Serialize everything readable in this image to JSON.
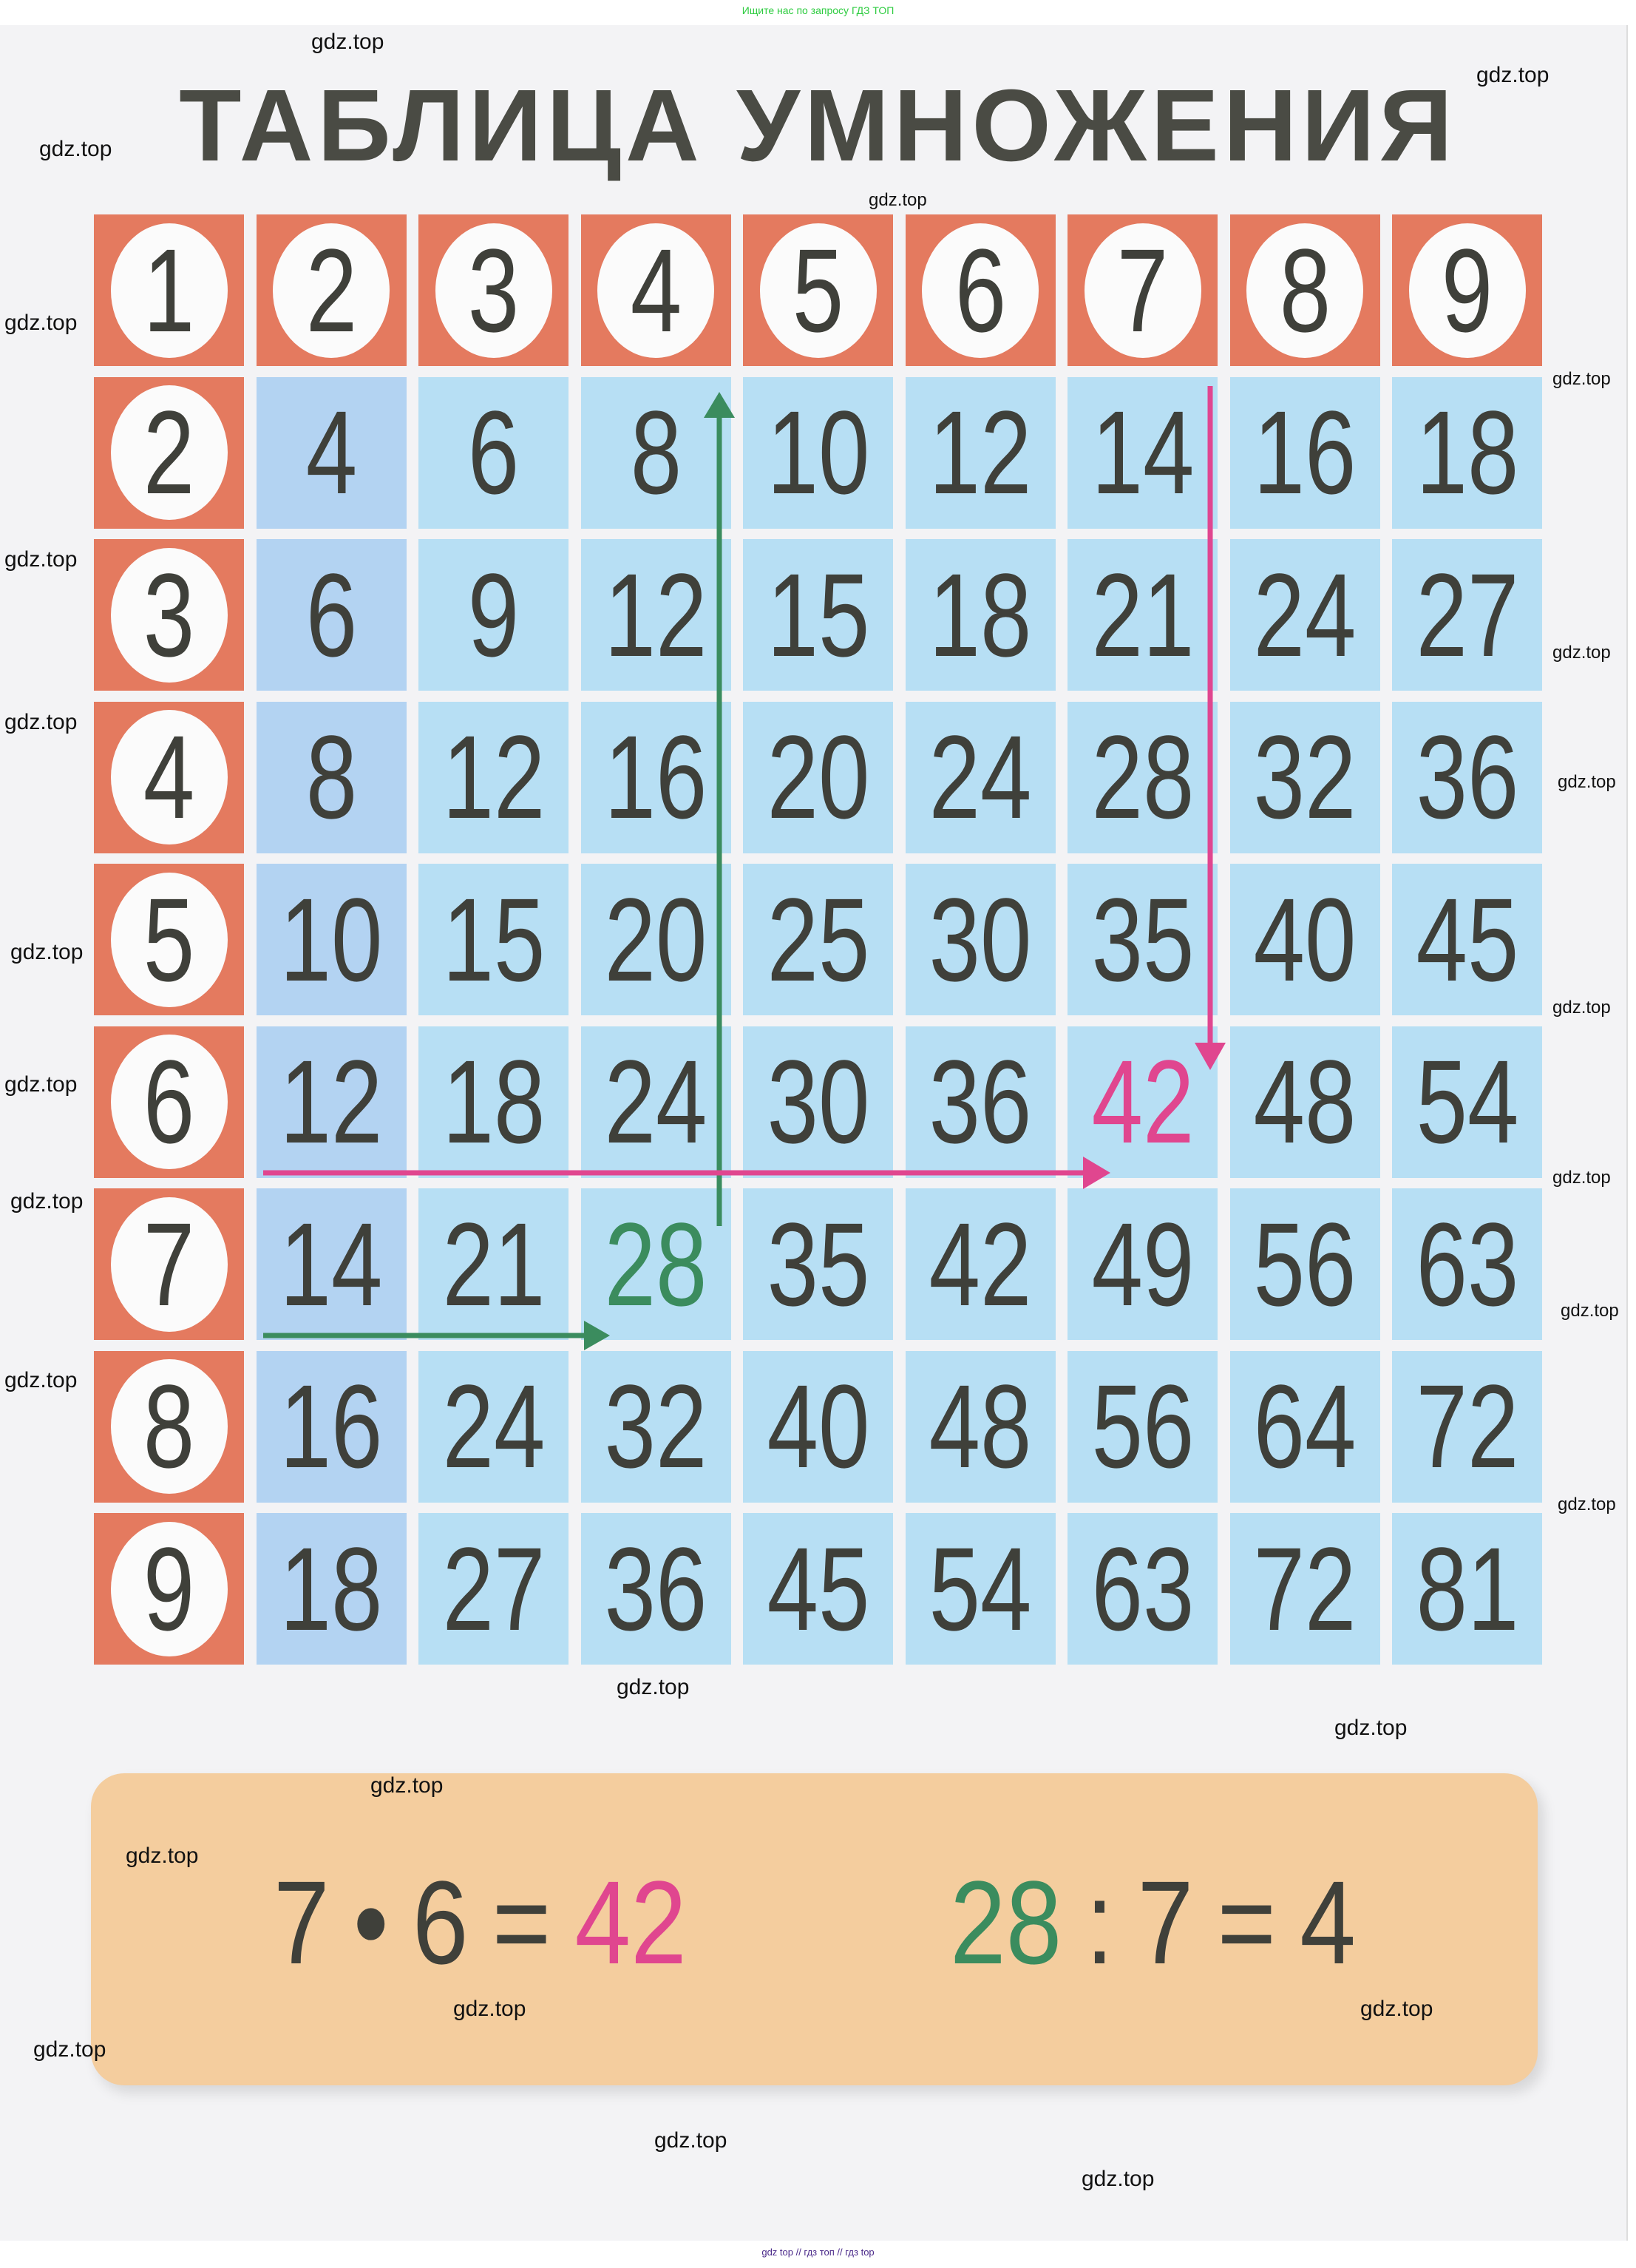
{
  "top_note": "Ищите нас по запросу ГДЗ ТОП",
  "footer_note": "gdz top  //  гдз топ  //  гдз top",
  "title": "ТАБЛИЦА УМНОЖЕНИЯ",
  "table": {
    "header": [
      "1",
      "2",
      "3",
      "4",
      "5",
      "6",
      "7",
      "8",
      "9"
    ],
    "rows": [
      {
        "label": "2",
        "values": [
          "4",
          "6",
          "8",
          "10",
          "12",
          "14",
          "16",
          "18"
        ]
      },
      {
        "label": "3",
        "values": [
          "6",
          "9",
          "12",
          "15",
          "18",
          "21",
          "24",
          "27"
        ]
      },
      {
        "label": "4",
        "values": [
          "8",
          "12",
          "16",
          "20",
          "24",
          "28",
          "32",
          "36"
        ]
      },
      {
        "label": "5",
        "values": [
          "10",
          "15",
          "20",
          "25",
          "30",
          "35",
          "40",
          "45"
        ]
      },
      {
        "label": "6",
        "values": [
          "12",
          "18",
          "24",
          "30",
          "36",
          "42",
          "48",
          "54"
        ]
      },
      {
        "label": "7",
        "values": [
          "14",
          "21",
          "28",
          "35",
          "42",
          "49",
          "56",
          "63"
        ]
      },
      {
        "label": "8",
        "values": [
          "16",
          "24",
          "32",
          "40",
          "48",
          "56",
          "64",
          "72"
        ]
      },
      {
        "label": "9",
        "values": [
          "18",
          "27",
          "36",
          "45",
          "54",
          "63",
          "72",
          "81"
        ]
      }
    ],
    "highlight_pink": {
      "row": "6",
      "col": "7",
      "value": "42"
    },
    "highlight_green": {
      "row": "7",
      "col": "4",
      "value": "28"
    }
  },
  "equations": {
    "multiplication": {
      "a": "7",
      "op": "•",
      "b": "6",
      "eq": "=",
      "result": "42"
    },
    "division": {
      "a": "28",
      "op": ":",
      "b": "7",
      "eq": "=",
      "result": "4"
    }
  },
  "colors": {
    "header": "#e47a5f",
    "cell": "#b7dff4",
    "pink": "#e0468f",
    "green": "#3b8c5e",
    "box": "#f4cd9e",
    "text": "#3f403a"
  },
  "watermarks": [
    "gdz.top",
    "gdz.top",
    "gdz.top",
    "gdz.top",
    "gdz.top",
    "gdz.top",
    "gdz.top",
    "gdz.top",
    "gdz.top",
    "gdz.top",
    "gdz.top",
    "gdz.top",
    "gdz.top",
    "gdz.top",
    "gdz.top",
    "gdz.top",
    "gdz.top",
    "gdz.top",
    "gdz.top",
    "gdz.top",
    "gdz.top",
    "gdz.top",
    "gdz.top",
    "gdz.top",
    "gdz.top",
    "gdz.top",
    "gdz.top"
  ]
}
